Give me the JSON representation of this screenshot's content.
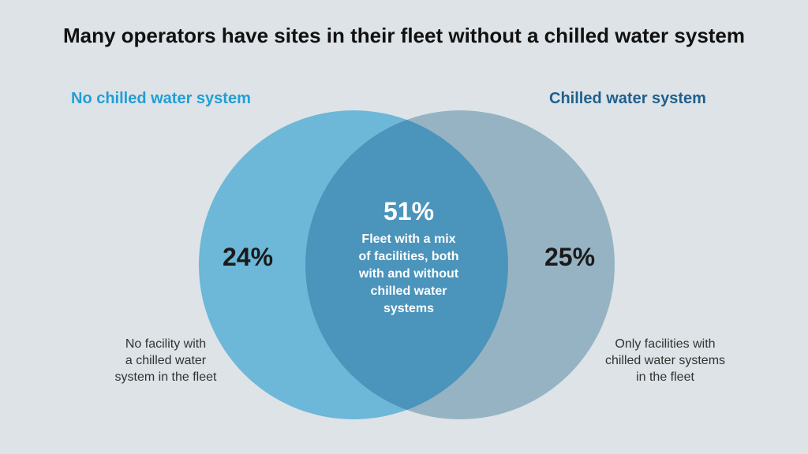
{
  "title": "Many operators have sites in their fleet without a chilled water system",
  "colors": {
    "background": "#dde3e6",
    "left_set": "#6db7d8",
    "right_set": "#96b3c3",
    "overlap": "#4b94bb",
    "left_label": "#1f9fd6",
    "right_label": "#1f5f8d"
  },
  "sets": {
    "left": {
      "label": "No chilled water system",
      "percent": "24%",
      "description": [
        "No facility with",
        "a chilled water",
        "system in the fleet"
      ]
    },
    "right": {
      "label": "Chilled water system",
      "percent": "25%",
      "description": [
        "Only facilities with",
        "chilled water systems",
        "in the fleet"
      ]
    },
    "overlap": {
      "percent": "51%",
      "description": [
        "Fleet with a mix",
        "of facilities, both",
        "with and without",
        "chilled water",
        "systems"
      ]
    }
  }
}
